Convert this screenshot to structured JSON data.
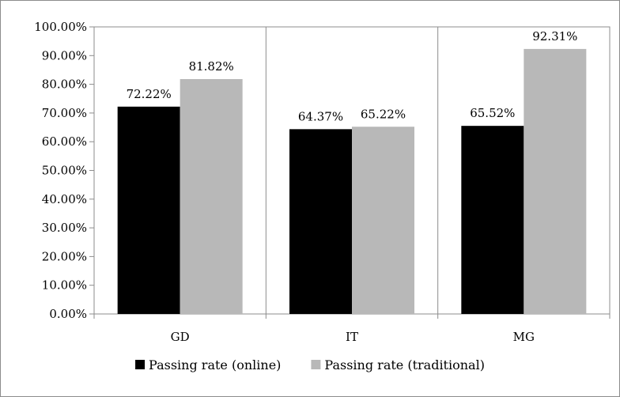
{
  "chart_data": {
    "type": "bar",
    "categories": [
      "GD",
      "IT",
      "MG"
    ],
    "series": [
      {
        "name": "Passing rate (online)",
        "values": [
          72.22,
          64.37,
          65.52
        ],
        "color": "#000000"
      },
      {
        "name": "Passing rate (traditional)",
        "values": [
          81.82,
          65.22,
          92.31
        ],
        "color": "#b8b8b8"
      }
    ],
    "data_labels": [
      [
        "72.22%",
        "64.37%",
        "65.52%"
      ],
      [
        "81.82%",
        "65.22%",
        "92.31%"
      ]
    ],
    "yticks": [
      "0.00%",
      "10.00%",
      "20.00%",
      "30.00%",
      "40.00%",
      "50.00%",
      "60.00%",
      "70.00%",
      "80.00%",
      "90.00%",
      "100.00%"
    ],
    "ylim": [
      0,
      100
    ],
    "xlabel": "",
    "ylabel": "",
    "title": "",
    "grid": "vertical category separators",
    "legend_position": "bottom",
    "axis_color": "#8c8c8c"
  }
}
